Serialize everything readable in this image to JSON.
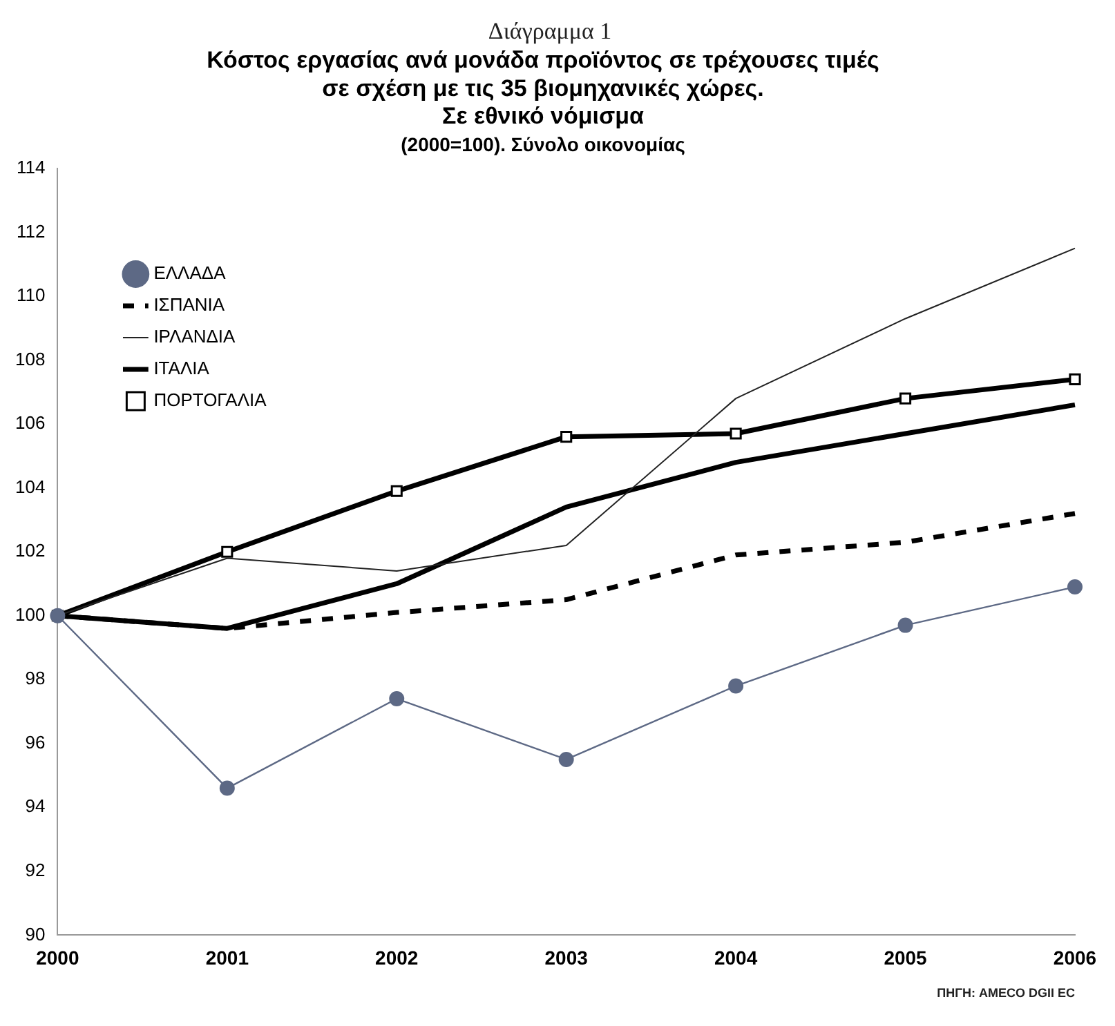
{
  "chart_data": {
    "type": "line",
    "title": "Κόστος εργασίας ανά μονάδα προϊόντος σε τρέχουσες τιμές\nσε σχέση με τις 35 βιομηχανικές χώρες.\nΣε εθνικό νόμισμα",
    "subtitle": "(2000=100). Σύνολο οικονομίας",
    "annotations": [
      "Διάγραμμα 1",
      "ΠΗΓΗ: AMECO DGII EC"
    ],
    "categories": [
      "2000",
      "2001",
      "2002",
      "2003",
      "2004",
      "2005",
      "2006"
    ],
    "series": [
      {
        "name": "ΕΛΛΑΔΑ",
        "color": "#5d6985",
        "marker": "circle",
        "line_style": "solid",
        "values": [
          100,
          94.6,
          97.4,
          95.5,
          97.8,
          99.7,
          100.9
        ]
      },
      {
        "name": "ΙΣΠΑΝΙΑ",
        "color": "#000000",
        "marker": "none",
        "line_style": "dashed",
        "values": [
          100,
          99.6,
          100.1,
          100.5,
          101.9,
          102.3,
          103.2
        ]
      },
      {
        "name": "ΙΡΛΑΝΔΙΑ",
        "color": "#222222",
        "marker": "none",
        "line_style": "solid",
        "values": [
          100,
          101.8,
          101.4,
          102.2,
          106.8,
          109.3,
          111.5
        ]
      },
      {
        "name": "ΙΤΑΛΙΑ",
        "color": "#000000",
        "marker": "none",
        "line_style": "solid",
        "values": [
          100,
          99.6,
          101.0,
          103.4,
          104.8,
          105.7,
          106.6
        ]
      },
      {
        "name": "ΠΟΡΤΟΓΑΛΙΑ",
        "color": "#000000",
        "marker": "square",
        "line_style": "solid",
        "values": [
          100,
          102.0,
          103.9,
          105.6,
          105.7,
          106.8,
          107.4
        ]
      }
    ],
    "ylim": [
      90,
      114
    ],
    "yticks": [
      90,
      92,
      94,
      96,
      98,
      100,
      102,
      104,
      106,
      108,
      110,
      112,
      114
    ],
    "grid": false,
    "legend": "top left"
  }
}
